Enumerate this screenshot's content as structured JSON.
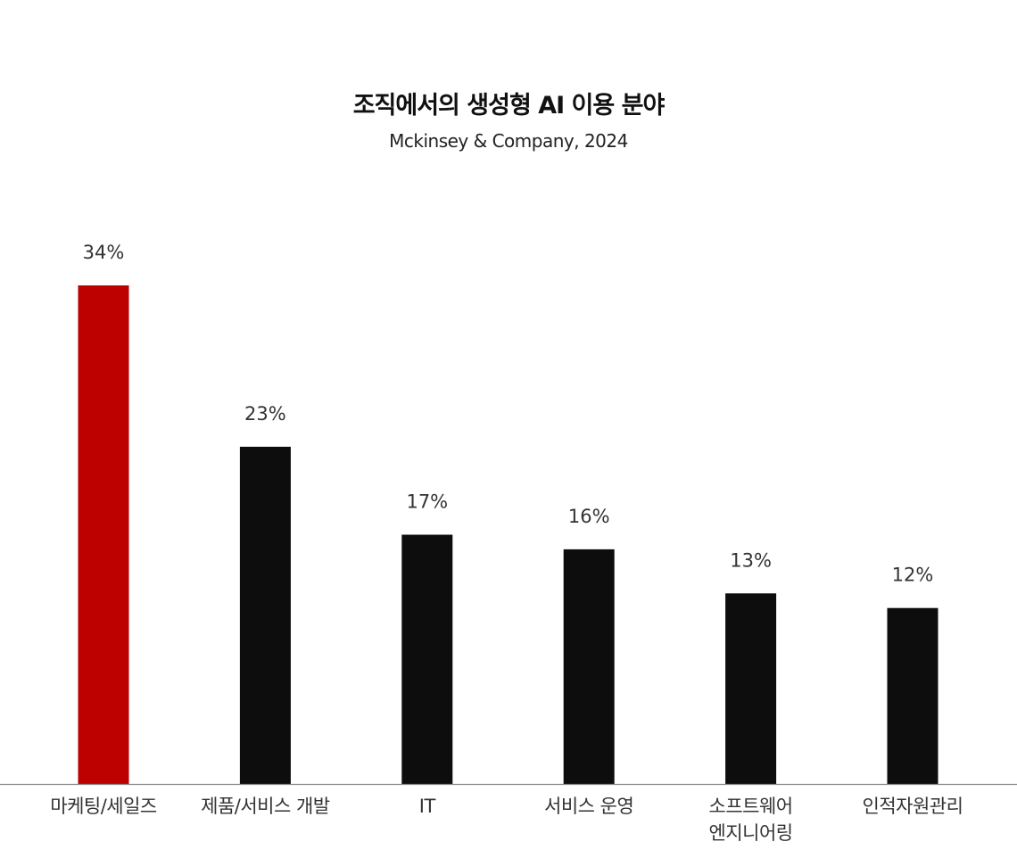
{
  "chart_data": {
    "type": "bar",
    "title": "조직에서의 생성형 AI 이용 분야",
    "subtitle": "Mckinsey & Company, 2024",
    "categories": [
      [
        "마케팅/세일즈"
      ],
      [
        "제품/서비스 개발"
      ],
      [
        "IT"
      ],
      [
        "서비스 운영"
      ],
      [
        "소프트웨어",
        "엔지니어링"
      ],
      [
        "인적자원관리"
      ]
    ],
    "values": [
      34,
      23,
      17,
      16,
      13,
      12
    ],
    "value_labels": [
      "34%",
      "23%",
      "17%",
      "16%",
      "13%",
      "12%"
    ],
    "ylim": [
      0,
      34
    ],
    "highlight_index": 0,
    "colors": {
      "highlight": "#BD0000",
      "bar": "#0D0D0D",
      "axis": "#8A8A8A"
    }
  }
}
